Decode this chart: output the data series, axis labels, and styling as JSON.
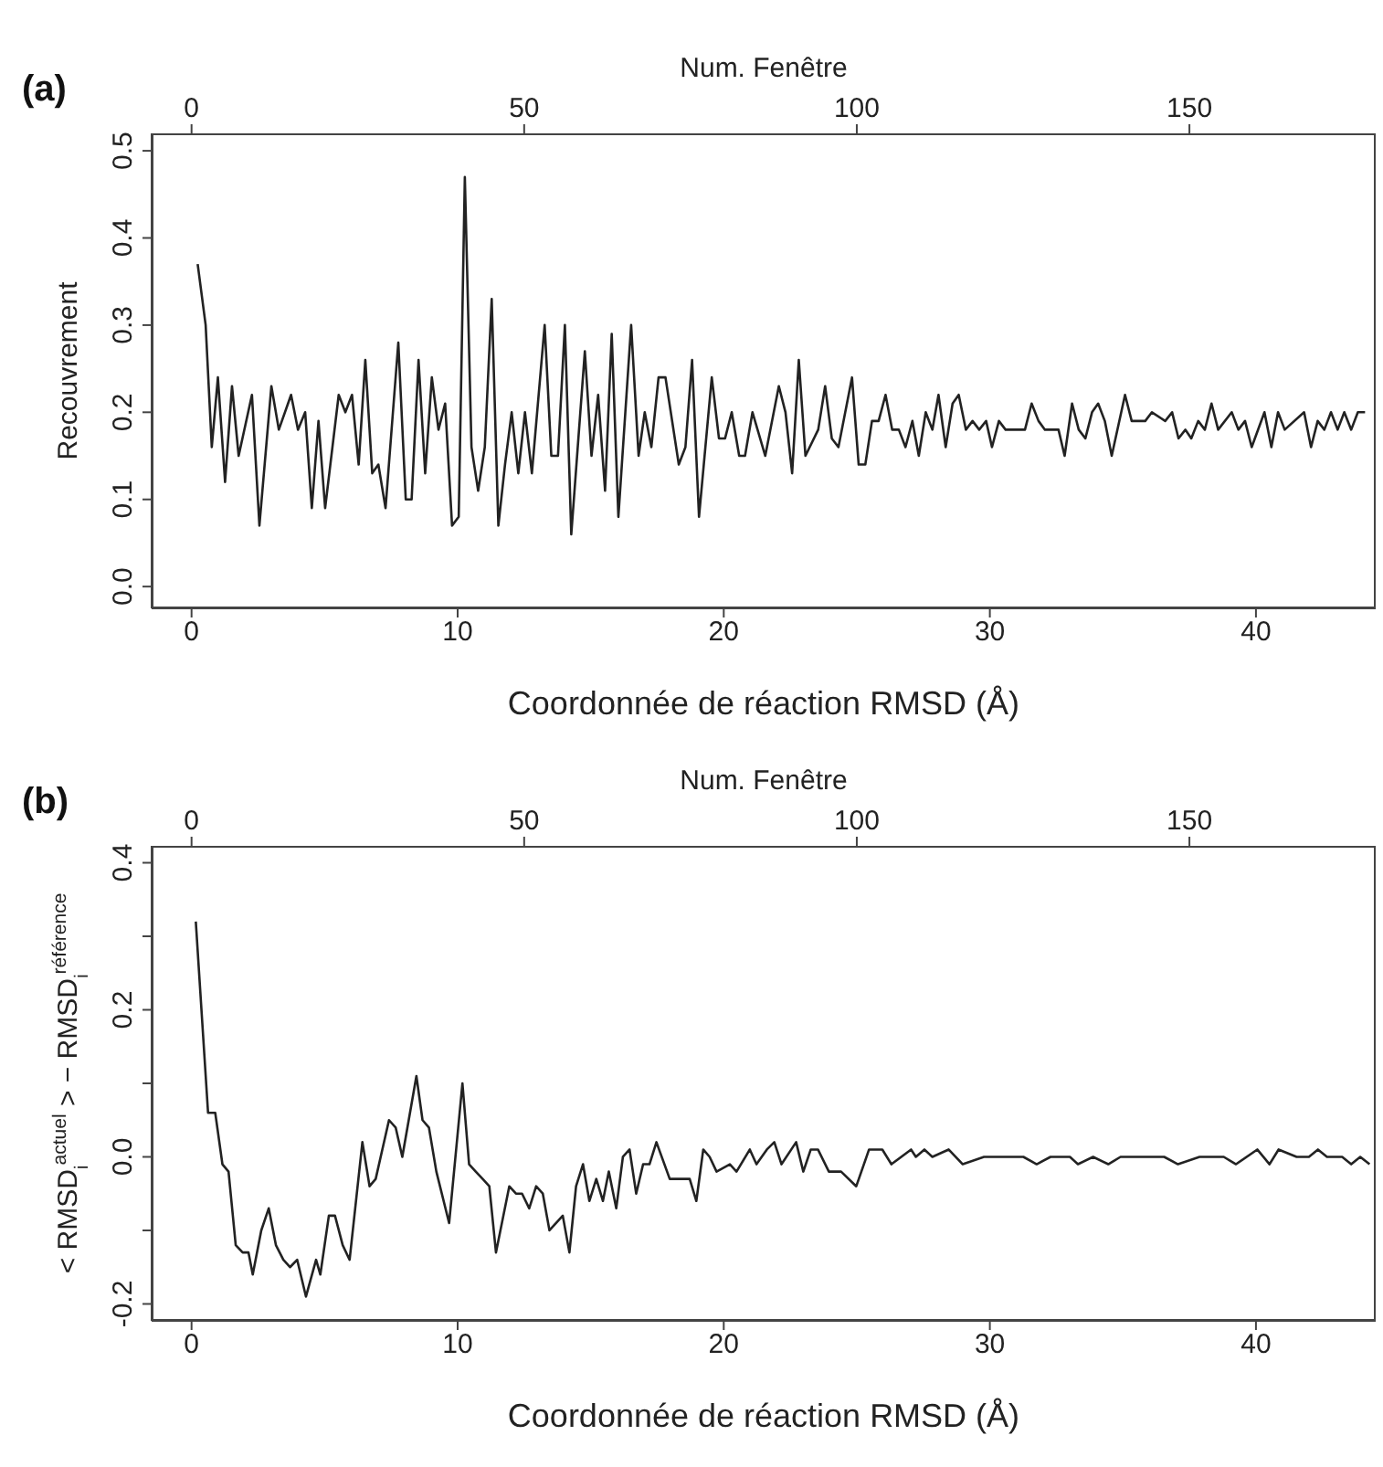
{
  "chart_data": [
    {
      "type": "line",
      "annotations": [
        "(a)"
      ],
      "xlabel": "Coordonnée de réaction RMSD (Å)",
      "x2label": "Num. Fenêtre",
      "ylabel": "Recouvrement",
      "xlim": [
        -1.5,
        44.5
      ],
      "xticks": [
        0,
        10,
        20,
        30,
        40
      ],
      "x2lim": [
        -6,
        178
      ],
      "x2ticks": [
        0,
        50,
        100,
        150
      ],
      "ylim": [
        -0.025,
        0.52
      ],
      "yticks": [
        {
          "value": 0,
          "label": "0.0"
        },
        0.1,
        0.2,
        0.3,
        0.4,
        0.5
      ],
      "marker": "none",
      "line_style": "solid",
      "series": [
        {
          "color": "#222222",
          "x": [
            0.23,
            0.53,
            0.76,
            0.99,
            1.26,
            1.52,
            1.77,
            2.27,
            2.55,
            3.0,
            3.28,
            3.74,
            4.0,
            4.27,
            4.52,
            4.77,
            5.02,
            5.53,
            5.78,
            6.03,
            6.28,
            6.53,
            6.79,
            7.02,
            7.29,
            7.77,
            8.05,
            8.27,
            8.53,
            8.78,
            9.03,
            9.28,
            9.53,
            9.79,
            10.04,
            10.27,
            10.52,
            10.77,
            11.02,
            11.28,
            11.53,
            11.78,
            12.03,
            12.28,
            12.53,
            12.79,
            13.27,
            13.52,
            13.77,
            14.03,
            14.27,
            14.78,
            15.03,
            15.28,
            15.54,
            15.79,
            16.04,
            16.52,
            16.8,
            17.03,
            17.28,
            17.55,
            17.81,
            18.31,
            18.56,
            18.81,
            19.07,
            19.55,
            19.82,
            20.05,
            20.3,
            20.58,
            20.8,
            21.08,
            21.56,
            22.07,
            22.32,
            22.57,
            22.82,
            23.07,
            23.55,
            23.81,
            24.06,
            24.31,
            24.82,
            25.07,
            25.32,
            25.57,
            25.82,
            26.08,
            26.33,
            26.58,
            26.83,
            27.09,
            27.33,
            27.59,
            27.84,
            28.07,
            28.34,
            28.6,
            28.83,
            29.1,
            29.35,
            29.6,
            29.86,
            30.08,
            30.34,
            30.59,
            31.32,
            31.57,
            31.83,
            32.07,
            32.33,
            32.58,
            32.81,
            33.09,
            33.34,
            33.59,
            33.84,
            34.07,
            34.32,
            34.58,
            35.08,
            35.33,
            35.84,
            36.09,
            36.59,
            36.85,
            37.09,
            37.35,
            37.57,
            37.83,
            38.08,
            38.33,
            38.58,
            39.09,
            39.34,
            39.59,
            39.84,
            40.32,
            40.58,
            40.83,
            41.08,
            41.81,
            42.07,
            42.32,
            42.57,
            42.82,
            43.07,
            43.32,
            43.58,
            43.83,
            44.1
          ],
          "values": [
            0.37,
            0.3,
            0.16,
            0.24,
            0.12,
            0.23,
            0.15,
            0.22,
            0.07,
            0.23,
            0.18,
            0.22,
            0.18,
            0.2,
            0.09,
            0.19,
            0.09,
            0.22,
            0.2,
            0.22,
            0.14,
            0.26,
            0.13,
            0.14,
            0.09,
            0.28,
            0.1,
            0.1,
            0.26,
            0.13,
            0.24,
            0.18,
            0.21,
            0.07,
            0.08,
            0.47,
            0.16,
            0.11,
            0.16,
            0.33,
            0.07,
            0.14,
            0.2,
            0.13,
            0.2,
            0.13,
            0.3,
            0.15,
            0.15,
            0.3,
            0.06,
            0.27,
            0.15,
            0.22,
            0.11,
            0.29,
            0.08,
            0.3,
            0.15,
            0.2,
            0.16,
            0.24,
            0.24,
            0.14,
            0.16,
            0.26,
            0.08,
            0.24,
            0.17,
            0.17,
            0.2,
            0.15,
            0.15,
            0.2,
            0.15,
            0.23,
            0.2,
            0.13,
            0.26,
            0.15,
            0.18,
            0.23,
            0.17,
            0.16,
            0.24,
            0.14,
            0.14,
            0.19,
            0.19,
            0.22,
            0.18,
            0.18,
            0.16,
            0.19,
            0.15,
            0.2,
            0.18,
            0.22,
            0.16,
            0.21,
            0.22,
            0.18,
            0.19,
            0.18,
            0.19,
            0.16,
            0.19,
            0.18,
            0.18,
            0.21,
            0.19,
            0.18,
            0.18,
            0.18,
            0.15,
            0.21,
            0.18,
            0.17,
            0.2,
            0.21,
            0.19,
            0.15,
            0.22,
            0.19,
            0.19,
            0.2,
            0.19,
            0.2,
            0.17,
            0.18,
            0.17,
            0.19,
            0.18,
            0.21,
            0.18,
            0.2,
            0.18,
            0.19,
            0.16,
            0.2,
            0.16,
            0.2,
            0.18,
            0.2,
            0.16,
            0.19,
            0.18,
            0.2,
            0.18,
            0.2,
            0.18,
            0.2,
            0.2
          ]
        }
      ]
    },
    {
      "type": "line",
      "annotations": [
        "(b)"
      ],
      "xlabel": "Coordonnée de réaction RMSD (Å)",
      "x2label": "Num. Fenêtre",
      "ylabel": "< RMSD$_{i}$$^{actuel}$ > − RMSD$_{i}$$^{référence}$",
      "xlim": [
        -1.5,
        44.5
      ],
      "xticks": [
        0,
        10,
        20,
        30,
        40
      ],
      "x2lim": [
        -6,
        178
      ],
      "x2ticks": [
        0,
        50,
        100,
        150
      ],
      "ylim": [
        -0.223,
        0.423
      ],
      "yticks": [
        -0.2,
        {
          "value": -0.1,
          "label": null
        },
        {
          "value": 0,
          "label": "0.0"
        },
        {
          "value": 0.1,
          "label": null
        },
        0.2,
        {
          "value": 0.3,
          "label": null
        },
        0.4
      ],
      "marker": "none",
      "line_style": "solid",
      "series": [
        {
          "color": "#222222",
          "x": [
            0.16,
            0.62,
            0.89,
            1.16,
            1.39,
            1.66,
            1.92,
            2.14,
            2.3,
            2.62,
            2.9,
            3.17,
            3.45,
            3.7,
            3.97,
            4.3,
            4.68,
            4.84,
            5.16,
            5.39,
            5.68,
            5.94,
            6.42,
            6.69,
            6.92,
            7.42,
            7.67,
            7.92,
            8.45,
            8.68,
            8.92,
            9.2,
            9.68,
            10.18,
            10.43,
            10.68,
            10.94,
            11.19,
            11.44,
            11.94,
            12.19,
            12.42,
            12.69,
            12.95,
            13.2,
            13.45,
            13.95,
            14.2,
            14.45,
            14.71,
            14.95,
            15.21,
            15.46,
            15.68,
            15.96,
            16.21,
            16.46,
            16.71,
            16.97,
            17.21,
            17.47,
            17.97,
            18.22,
            18.72,
            18.97,
            19.23,
            19.47,
            19.73,
            20.23,
            20.48,
            20.98,
            21.23,
            21.62,
            21.9,
            22.17,
            22.72,
            22.99,
            23.27,
            23.54,
            23.95,
            24.41,
            24.98,
            25.46,
            25.96,
            26.3,
            27.04,
            27.22,
            27.54,
            27.84,
            28.45,
            28.98,
            29.78,
            30.53,
            31.26,
            31.76,
            32.28,
            33.01,
            33.31,
            33.88,
            34.45,
            34.91,
            35.6,
            36.55,
            37.07,
            37.88,
            38.79,
            39.25,
            40.05,
            40.51,
            40.85,
            41.53,
            41.99,
            42.33,
            42.67,
            43.24,
            43.58,
            43.92,
            44.27
          ],
          "values": [
            0.32,
            0.06,
            0.06,
            -0.01,
            -0.02,
            -0.12,
            -0.13,
            -0.13,
            -0.16,
            -0.1,
            -0.07,
            -0.12,
            -0.14,
            -0.15,
            -0.14,
            -0.19,
            -0.14,
            -0.16,
            -0.08,
            -0.08,
            -0.12,
            -0.14,
            0.02,
            -0.04,
            -0.03,
            0.05,
            0.04,
            0.0,
            0.11,
            0.05,
            0.04,
            -0.02,
            -0.09,
            0.1,
            -0.01,
            -0.02,
            -0.03,
            -0.04,
            -0.13,
            -0.04,
            -0.05,
            -0.05,
            -0.07,
            -0.04,
            -0.05,
            -0.1,
            -0.08,
            -0.13,
            -0.04,
            -0.01,
            -0.06,
            -0.03,
            -0.06,
            -0.02,
            -0.07,
            0.0,
            0.01,
            -0.05,
            -0.01,
            -0.01,
            0.02,
            -0.03,
            -0.03,
            -0.03,
            -0.06,
            0.01,
            0.0,
            -0.02,
            -0.01,
            -0.02,
            0.01,
            -0.01,
            0.01,
            0.02,
            -0.01,
            0.02,
            -0.02,
            0.01,
            0.01,
            -0.02,
            -0.02,
            -0.04,
            0.01,
            0.01,
            -0.01,
            0.01,
            0.0,
            0.01,
            0.0,
            0.01,
            -0.01,
            0.0,
            0.0,
            0.0,
            -0.01,
            0.0,
            0.0,
            -0.01,
            0.0,
            -0.01,
            0.0,
            0.0,
            0.0,
            -0.01,
            0.0,
            0.0,
            -0.01,
            0.01,
            -0.01,
            0.01,
            0.0,
            0.0,
            0.01,
            0.0,
            0.0,
            -0.01,
            0.0,
            -0.01
          ]
        }
      ]
    }
  ]
}
